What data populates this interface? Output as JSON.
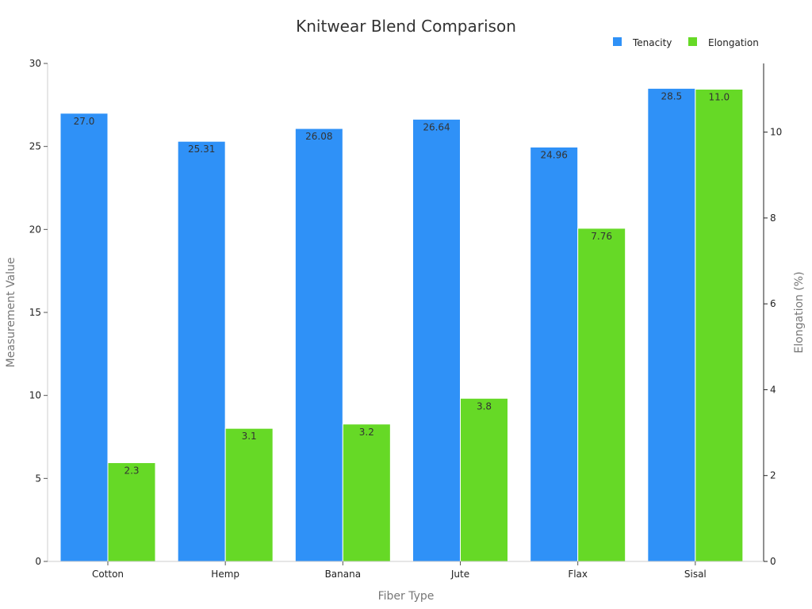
{
  "chart_data": {
    "type": "bar",
    "title": "Knitwear Blend Comparison",
    "xlabel": "Fiber Type",
    "ylabel": "Measurement Value",
    "y2label": "Elongation (%)",
    "categories": [
      "Cotton",
      "Hemp",
      "Banana",
      "Jute",
      "Flax",
      "Sisal"
    ],
    "series": [
      {
        "name": "Tenacity",
        "axis": "left",
        "color": "#2f91f7",
        "values": [
          27.0,
          25.31,
          26.08,
          26.64,
          24.96,
          28.5
        ],
        "labels": [
          "27.0",
          "25.31",
          "26.08",
          "26.64",
          "24.96",
          "28.5"
        ]
      },
      {
        "name": "Elongation",
        "axis": "right",
        "color": "#66d926",
        "values": [
          2.3,
          3.1,
          3.2,
          3.8,
          7.76,
          11.0
        ],
        "labels": [
          "2.3",
          "3.1",
          "3.2",
          "3.8",
          "7.76",
          "11.0"
        ]
      }
    ],
    "ylim": [
      0,
      30
    ],
    "y2lim": [
      0,
      11.6
    ],
    "yticks": [
      0,
      5,
      10,
      15,
      20,
      25,
      30
    ],
    "y2ticks": [
      0,
      2,
      4,
      6,
      8,
      10
    ],
    "legend_position": "top-right",
    "grid": false
  }
}
